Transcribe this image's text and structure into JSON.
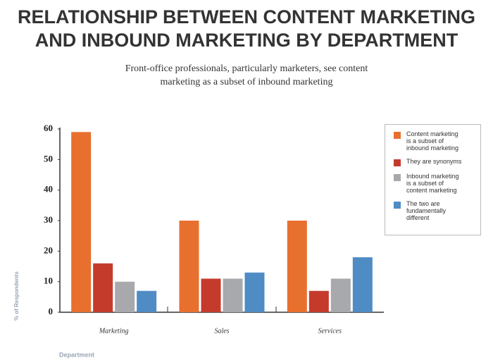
{
  "chart_data": {
    "type": "bar",
    "title": "RELATIONSHIP BETWEEN CONTENT MARKETING AND INBOUND MARKETING BY DEPARTMENT",
    "subtitle": "Front-office professionals, particularly marketers, see content marketing as a subset of inbound marketing",
    "x_label": "Department",
    "y_label": "% of Respondents",
    "categories": [
      "Marketing",
      "Sales",
      "Services"
    ],
    "series": [
      {
        "name": "Content marketing is a subset of inbound marketing",
        "color": "#e8702f",
        "values": [
          59,
          30,
          30
        ]
      },
      {
        "name": "They are synonyms",
        "color": "#c43b2c",
        "values": [
          16,
          11,
          7
        ]
      },
      {
        "name": "Inbound marketing is a subset of content marketing",
        "color": "#a7a9ac",
        "values": [
          10,
          11,
          11
        ]
      },
      {
        "name": "The two are fundamentally different",
        "color": "#4f8cc4",
        "values": [
          7,
          13,
          18
        ]
      }
    ],
    "ylim": [
      0,
      60
    ],
    "yticks": [
      0,
      10,
      20,
      30,
      40,
      50,
      60
    ],
    "grid": false
  }
}
